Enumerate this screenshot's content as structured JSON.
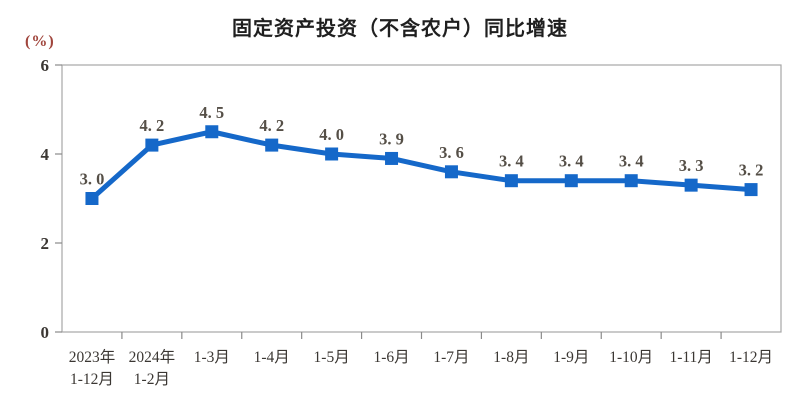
{
  "chart_data": {
    "type": "line",
    "title": "固定资产投资（不含农户）同比增速",
    "unit_label": "(%)",
    "categories": [
      [
        "2023年",
        "1-12月"
      ],
      [
        "2024年",
        "1-2月"
      ],
      [
        "1-3月"
      ],
      [
        "1-4月"
      ],
      [
        "1-5月"
      ],
      [
        "1-6月"
      ],
      [
        "1-7月"
      ],
      [
        "1-8月"
      ],
      [
        "1-9月"
      ],
      [
        "1-10月"
      ],
      [
        "1-11月"
      ],
      [
        "1-12月"
      ]
    ],
    "values": [
      3.0,
      4.2,
      4.5,
      4.2,
      4.0,
      3.9,
      3.6,
      3.4,
      3.4,
      3.4,
      3.3,
      3.2
    ],
    "point_labels": [
      "3. 0",
      "4. 2",
      "4. 5",
      "4. 2",
      "4. 0",
      "3. 9",
      "3. 6",
      "3. 4",
      "3. 4",
      "3. 4",
      "3. 3",
      "3. 2"
    ],
    "xlabel": "",
    "ylabel": "",
    "ylim": [
      0,
      6
    ],
    "yticks": [
      0,
      2,
      4,
      6
    ],
    "grid": false,
    "legend_position": "none",
    "colors": {
      "line": "#1568c9",
      "marker": "#1568c9",
      "axis_frame": "#a6a6a6",
      "tick": "#8a8a8a",
      "y_tick_label": "#3b3733",
      "x_tick_label": "#3b3733",
      "point_label": "#554f47",
      "unit_label": "#a0453c",
      "title": "#1f1f1f",
      "background": "#ffffff"
    }
  }
}
